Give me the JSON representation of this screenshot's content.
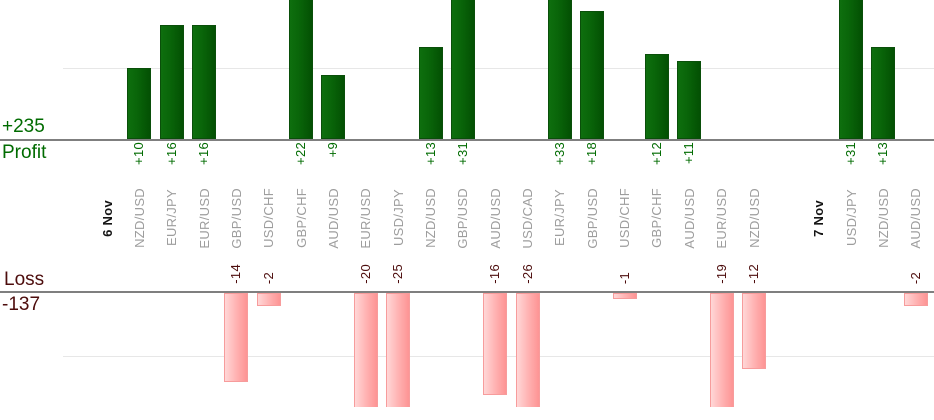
{
  "summary": {
    "profit_total": "+235",
    "profit_label": "Profit",
    "loss_label": "Loss",
    "loss_total": "-137"
  },
  "colors": {
    "profit_text": "#006b00",
    "loss_text": "#4d0d0d",
    "profit_bar": "#096409",
    "loss_bar": "#ffb0b0",
    "pair_label": "#9d9d9d",
    "date_label": "#141414",
    "axis": "#7f7f7f",
    "gridline": "#e7e7e7"
  },
  "chart_data": {
    "type": "bar",
    "title": "",
    "xlabel": "",
    "ylabel_top": "Profit",
    "ylabel_bottom": "Loss",
    "total_profit": 235,
    "total_loss": -137,
    "ylim_profit_visible": [
      0,
      20
    ],
    "ylim_loss_visible": [
      -18,
      0
    ],
    "gridline_levels": [
      10,
      -10
    ],
    "grid": "on",
    "legend": "none",
    "note": "bars exceeding visible range are clipped at plot edges",
    "slots": [
      {
        "kind": "date",
        "label": "6 Nov"
      },
      {
        "kind": "bar",
        "label": "NZD/USD",
        "value": 10
      },
      {
        "kind": "bar",
        "label": "EUR/JPY",
        "value": 16
      },
      {
        "kind": "bar",
        "label": "EUR/USD",
        "value": 16
      },
      {
        "kind": "bar",
        "label": "GBP/USD",
        "value": -14
      },
      {
        "kind": "bar",
        "label": "USD/CHF",
        "value": -2
      },
      {
        "kind": "bar",
        "label": "GBP/CHF",
        "value": 22
      },
      {
        "kind": "bar",
        "label": "AUD/USD",
        "value": 9
      },
      {
        "kind": "bar",
        "label": "EUR/USD",
        "value": -20
      },
      {
        "kind": "bar",
        "label": "USD/JPY",
        "value": -25
      },
      {
        "kind": "bar",
        "label": "NZD/USD",
        "value": 13
      },
      {
        "kind": "bar",
        "label": "GBP/USD",
        "value": 31
      },
      {
        "kind": "bar",
        "label": "AUD/USD",
        "value": -16
      },
      {
        "kind": "bar",
        "label": "USD/CAD",
        "value": -26
      },
      {
        "kind": "bar",
        "label": "EUR/JPY",
        "value": 33
      },
      {
        "kind": "bar",
        "label": "GBP/USD",
        "value": 18
      },
      {
        "kind": "bar",
        "label": "USD/CHF",
        "value": -1
      },
      {
        "kind": "bar",
        "label": "GBP/CHF",
        "value": 12
      },
      {
        "kind": "bar",
        "label": "AUD/USD",
        "value": 11
      },
      {
        "kind": "bar",
        "label": "EUR/USD",
        "value": -19
      },
      {
        "kind": "bar",
        "label": "NZD/USD",
        "value": -12
      },
      {
        "kind": "spacer",
        "label": ""
      },
      {
        "kind": "date",
        "label": "7 Nov"
      },
      {
        "kind": "bar",
        "label": "USD/JPY",
        "value": 31
      },
      {
        "kind": "bar",
        "label": "NZD/USD",
        "value": 13
      },
      {
        "kind": "bar",
        "label": "AUD/USD",
        "value": -2
      }
    ]
  }
}
